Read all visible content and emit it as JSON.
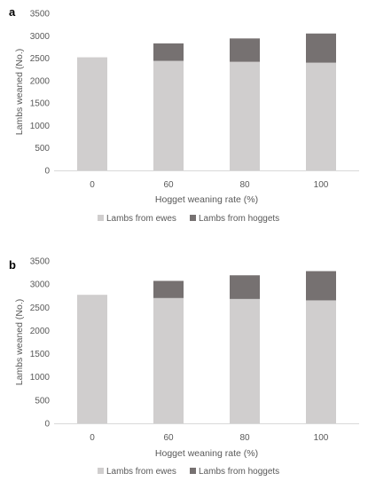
{
  "colors": {
    "ewes": "#d0cece",
    "hoggets": "#767171",
    "axis": "#d9d9d9",
    "text": "#595959"
  },
  "chart_data": [
    {
      "panel": "a",
      "type": "bar",
      "stacked": true,
      "categories": [
        "0",
        "60",
        "80",
        "100"
      ],
      "series": [
        {
          "name": "Lambs from ewes",
          "values": [
            2520,
            2440,
            2420,
            2400
          ]
        },
        {
          "name": "Lambs from hoggets",
          "values": [
            0,
            390,
            520,
            650
          ]
        }
      ],
      "xlabel": "Hogget weaning rate (%)",
      "ylabel": "Lambs weaned (No.)",
      "ylim": [
        0,
        3500
      ],
      "yticks": [
        "0",
        "500",
        "1000",
        "1500",
        "2000",
        "2500",
        "3000",
        "3500"
      ],
      "grid": false,
      "legend": "bottom"
    },
    {
      "panel": "b",
      "type": "bar",
      "stacked": true,
      "categories": [
        "0",
        "60",
        "80",
        "100"
      ],
      "series": [
        {
          "name": "Lambs from ewes",
          "values": [
            2770,
            2700,
            2680,
            2650
          ]
        },
        {
          "name": "Lambs from hoggets",
          "values": [
            0,
            370,
            510,
            630
          ]
        }
      ],
      "xlabel": "Hogget weaning rate (%)",
      "ylabel": "Lambs weaned (No.)",
      "ylim": [
        0,
        3500
      ],
      "yticks": [
        "0",
        "500",
        "1000",
        "1500",
        "2000",
        "2500",
        "3000",
        "3500"
      ],
      "grid": false,
      "legend": "bottom"
    }
  ]
}
